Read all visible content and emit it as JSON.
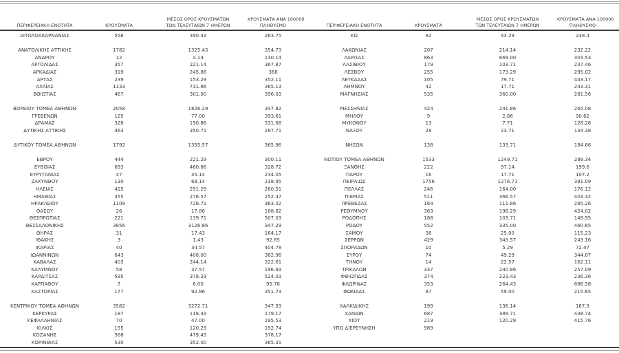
{
  "document": {
    "type": "regional-cases-table",
    "language": "el"
  },
  "colors": {
    "text": "#3a3a3a",
    "rule_dark": "#3b3b3b",
    "rule_gray": "#9a9a9a",
    "background": "#ffffff"
  },
  "table": {
    "headers": {
      "region": "ΠΕΡΙΦΕΡΕΙΑΚΗ ΕΝΟΤΗΤΑ",
      "cases": "ΚΡΟΥΣΜΑΤΑ",
      "avg7_line1": "ΜΕΣΟΣ ΟΡΟΣ ΚΡΟΥΣΜΑΤΩΝ",
      "avg7_line2": "ΤΩΝ ΤΕΛΕΥΤΑΙΩΝ 7 ΗΜΕΡΩΝ",
      "per100k_line1": "ΚΡΟΥΣΜΑΤΑ ΑΝΑ 100000",
      "per100k_line2": "ΠΛΗΘΥΣΜΟ"
    },
    "left_rows": [
      [
        "ΑΙΤΩΛΟΑΚΑΡΝΑΝΙΑΣ",
        "556",
        "390.43",
        "263.75"
      ],
      null,
      [
        "ΑΝΑΤΟΛΙΚΗΣ ΑΤΤΙΚΗΣ",
        "1782",
        "1325.43",
        "354.73"
      ],
      [
        "ΑΝΔΡΟΥ",
        "12",
        "4.14",
        "130.14"
      ],
      [
        "ΑΡΓΟΛΙΔΑΣ",
        "357",
        "221.14",
        "367.87"
      ],
      [
        "ΑΡΚΑΔΙΑΣ",
        "319",
        "245.86",
        "368"
      ],
      [
        "ΑΡΤΑΣ",
        "239",
        "153.29",
        "352.11"
      ],
      [
        "ΑΧΑΪΑΣ",
        "1133",
        "731.86",
        "365.13"
      ],
      [
        "ΒΟΙΩΤΙΑΣ",
        "467",
        "301.00",
        "396.03"
      ],
      null,
      [
        "ΒΟΡΕΙΟΥ ΤΟΜΕΑ ΑΘΗΝΩΝ",
        "2058",
        "1826.29",
        "347.82"
      ],
      [
        "ΓΡΕΒΕΝΩΝ",
        "125",
        "77.00",
        "393.61"
      ],
      [
        "ΔΡΑΜΑΣ",
        "326",
        "190.86",
        "331.68"
      ],
      [
        "ΔΥΤΙΚΗΣ ΑΤΤΙΚΗΣ",
        "463",
        "350.71",
        "287.71"
      ],
      null,
      [
        "ΔΥΤΙΚΟΥ ΤΟΜΕΑ ΑΘΗΝΩΝ",
        "1792",
        "1355.57",
        "365.96"
      ],
      null,
      [
        "ΕΒΡΟΥ",
        "444",
        "221.29",
        "300.11"
      ],
      [
        "ΕΥΒΟΙΑΣ",
        "693",
        "460.86",
        "328.72"
      ],
      [
        "ΕΥΡΥΤΑΝΙΑΣ",
        "47",
        "35.14",
        "234.05"
      ],
      [
        "ΖΑΚΥΝΘΟΥ",
        "130",
        "68.14",
        "318.95"
      ],
      [
        "ΗΛΕΙΑΣ",
        "415",
        "291.29",
        "260.51"
      ],
      [
        "ΗΜΑΘΙΑΣ",
        "355",
        "276.57",
        "252.47"
      ],
      [
        "ΗΡΑΚΛΕΙΟΥ",
        "1109",
        "726.71",
        "363.02"
      ],
      [
        "ΘΑΣΟΥ",
        "26",
        "17.86",
        "188.82"
      ],
      [
        "ΘΕΣΠΡΩΤΙΑΣ",
        "221",
        "139.71",
        "507.03"
      ],
      [
        "ΘΕΣΣΑΛΟΝΙΚΗΣ",
        "3856",
        "3126.86",
        "347.29"
      ],
      [
        "ΘΗΡΑΣ",
        "31",
        "17.43",
        "164.17"
      ],
      [
        "ΙΘΑΚΗΣ",
        "3",
        "1.43",
        "92.85"
      ],
      [
        "ΙΚΑΡΙΑΣ",
        "40",
        "34.57",
        "404.78"
      ],
      [
        "ΙΩΑΝΝΙΝΩΝ",
        "643",
        "408.00",
        "382.96"
      ],
      [
        "ΚΑΒΑΛΑΣ",
        "403",
        "244.14",
        "322.61"
      ],
      [
        "ΚΑΛΥΜΝΟΥ",
        "58",
        "37.57",
        "196.93"
      ],
      [
        "ΚΑΡΔΙΤΣΑΣ",
        "595",
        "378.29",
        "524.03"
      ],
      [
        "ΚΑΡΠΑΘΟΥ",
        "7",
        "6.00",
        "95.76"
      ],
      [
        "ΚΑΣΤΟΡΙΑΣ",
        "177",
        "92.86",
        "351.73"
      ],
      null,
      [
        "ΚΕΝΤΡΙΚΟΥ ΤΟΜΕΑ ΑΘΗΝΩΝ",
        "3582",
        "3272.71",
        "347.93"
      ],
      [
        "ΚΕΡΚΥΡΑΣ",
        "187",
        "118.43",
        "179.17"
      ],
      [
        "ΚΕΦΑΛΛΗΝΙΑΣ",
        "70",
        "47.00",
        "195.53"
      ],
      [
        "ΚΙΛΚΙΣ",
        "155",
        "120.29",
        "192.74"
      ],
      [
        "ΚΟΖΑΝΗΣ",
        "568",
        "479.43",
        "378.17"
      ],
      [
        "ΚΟΡΙΝΘΙΑΣ",
        "530",
        "352.00",
        "365.31"
      ]
    ],
    "right_rows": [
      [
        "ΚΩ",
        "82",
        "43.29",
        "238.4"
      ],
      null,
      [
        "ΛΑΚΩΝΙΑΣ",
        "207",
        "214.14",
        "232.22"
      ],
      [
        "ΛΑΡΙΣΑΣ",
        "863",
        "669.00",
        "303.53"
      ],
      [
        "ΛΑΣΙΘΙΟΥ",
        "179",
        "103.71",
        "237.46"
      ],
      [
        "ΛΕΣΒΟΥ",
        "255",
        "173.29",
        "295.02"
      ],
      [
        "ΛΕΥΚΑΔΑΣ",
        "105",
        "79.71",
        "443.17"
      ],
      [
        "ΛΗΜΝΟΥ",
        "42",
        "17.71",
        "243.31"
      ],
      [
        "ΜΑΓΝΗΣΙΑΣ",
        "535",
        "360.00",
        "281.56"
      ],
      null,
      [
        "ΜΕΣΣΗΝΙΑΣ",
        "424",
        "241.86",
        "265.08"
      ],
      [
        "ΜΗΛΟΥ",
        "9",
        "2.86",
        "90.62"
      ],
      [
        "ΜΥΚΟΝΟΥ",
        "13",
        "7.71",
        "128.28"
      ],
      [
        "ΝΑΞΟΥ",
        "28",
        "23.71",
        "134.38"
      ],
      null,
      [
        "ΝΗΣΩΝ",
        "138",
        "133.71",
        "184.86"
      ],
      null,
      [
        "ΝΟΤΙΟΥ ΤΟΜΕΑ ΑΘΗΝΩΝ",
        "1533",
        "1249.71",
        "289.34"
      ],
      [
        "ΞΑΝΘΗΣ",
        "222",
        "97.14",
        "199.6"
      ],
      [
        "ΠΑΡΟΥ",
        "16",
        "17.71",
        "107.2"
      ],
      [
        "ΠΕΙΡΑΙΩΣ",
        "1756",
        "1276.71",
        "391.09"
      ],
      [
        "ΠΕΛΛΑΣ",
        "246",
        "164.00",
        "176.12"
      ],
      [
        "ΠΙΕΡΙΑΣ",
        "511",
        "366.57",
        "403.32"
      ],
      [
        "ΠΡΕΒΕΖΑΣ",
        "164",
        "111.86",
        "285.26"
      ],
      [
        "ΡΕΘΥΜΝΟΥ",
        "363",
        "198.29",
        "424.02"
      ],
      [
        "ΡΟΔΟΠΗΣ",
        "168",
        "103.71",
        "149.95"
      ],
      [
        "ΡΟΔΟΥ",
        "552",
        "335.00",
        "460.65"
      ],
      [
        "ΣΑΜΟΥ",
        "38",
        "25.00",
        "115.23"
      ],
      [
        "ΣΕΡΡΩΝ",
        "429",
        "343.57",
        "243.16"
      ],
      [
        "ΣΠΟΡΑΔΩΝ",
        "10",
        "5.29",
        "72.47"
      ],
      [
        "ΣΥΡΟΥ",
        "74",
        "49.29",
        "344.07"
      ],
      [
        "ΤΗΝΟΥ",
        "14",
        "22.57",
        "162.11"
      ],
      [
        "ΤΡΙΚΑΛΩΝ",
        "337",
        "240.86",
        "257.09"
      ],
      [
        "ΦΘΙΩΤΙΔΑΣ",
        "374",
        "223.43",
        "236.36"
      ],
      [
        "ΦΛΩΡΙΝΑΣ",
        "353",
        "264.43",
        "686.58"
      ],
      [
        "ΦΩΚΙΔΑΣ",
        "87",
        "59.00",
        "215.65"
      ],
      null,
      [
        "ΧΑΛΚΙΔΙΚΗΣ",
        "199",
        "136.14",
        "187.9"
      ],
      [
        "ΧΑΝΙΩΝ",
        "687",
        "389.71",
        "438.74"
      ],
      [
        "ΧΙΟΥ",
        "219",
        "120.29",
        "415.76"
      ],
      [
        "ΥΠΟ ΔΙΕΡΕΥΝΗΣΗ",
        "989",
        "",
        ""
      ],
      null,
      null
    ]
  }
}
